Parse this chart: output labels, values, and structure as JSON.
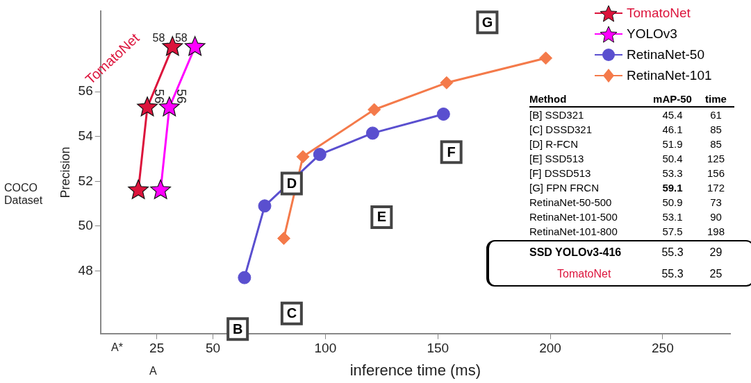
{
  "chart_data": {
    "type": "line",
    "xlabel": "inference time (ms)",
    "ylabel": "Precision",
    "xlim": [
      0,
      280
    ],
    "ylim": [
      45.2,
      59.6
    ],
    "xticks": [
      25,
      50,
      100,
      150,
      200,
      250
    ],
    "yticks": [
      48,
      50,
      52,
      54,
      56
    ],
    "grid": false,
    "legend": "top right",
    "series": [
      {
        "name": "TomatoNet",
        "color": "#dc143c",
        "marker": "star",
        "x": [
          16.8,
          20.8,
          32
        ],
        "values": [
          51.6,
          55.3,
          58
        ],
        "value_labels": [
          null,
          null,
          "58"
        ]
      },
      {
        "name": "YOLOv3",
        "color": "#ff00ff",
        "marker": "star",
        "x": [
          26.7,
          30.6,
          42
        ],
        "values": [
          51.6,
          55.3,
          58
        ],
        "value_labels": [
          null,
          null,
          "58"
        ]
      },
      {
        "name": "RetinaNet-50",
        "color": "#5a4fcf",
        "marker": "circle",
        "x": [
          64,
          73,
          97.5,
          121,
          152.5
        ],
        "values": [
          47.7,
          50.9,
          53.2,
          54.15,
          55
        ]
      },
      {
        "name": "RetinaNet-101",
        "color": "#f47a4a",
        "marker": "diamond",
        "x": [
          81.5,
          90,
          121.7,
          153.9,
          198
        ],
        "values": [
          49.45,
          53.1,
          55.2,
          56.4,
          57.5
        ]
      }
    ],
    "annotations": [
      "COCO Dataset",
      "A*",
      "A",
      "56",
      "56",
      {
        "text": "B",
        "x": 61,
        "y": 45.4
      },
      {
        "text": "C",
        "x": 85,
        "y": 46.1
      },
      {
        "text": "D",
        "x": 85,
        "y": 51.9
      },
      {
        "text": "E",
        "x": 125,
        "y": 50.4
      },
      {
        "text": "F",
        "x": 156,
        "y": 53.3
      },
      {
        "text": "G",
        "x": 172,
        "y": 59.1
      },
      "Method",
      "mAP-50",
      "time",
      "[B] SSD321",
      "45.4",
      "61",
      "[C] DSSD321",
      "46.1",
      "85",
      "[D] R-FCN",
      "51.9",
      "85",
      "[E] SSD513",
      "50.4",
      "125",
      "[F] DSSD513",
      "53.3",
      "156",
      "[G] FPN FRCN",
      "59.1",
      "172",
      "RetinaNet-50-500",
      "50.9",
      "73",
      "RetinaNet-101-500",
      "53.1",
      "90",
      "RetinaNet-101-800",
      "57.5",
      "198",
      "SSD YOLOv3-416",
      "55.3",
      "29",
      "TomatoNet",
      "55.3",
      "25"
    ]
  }
}
